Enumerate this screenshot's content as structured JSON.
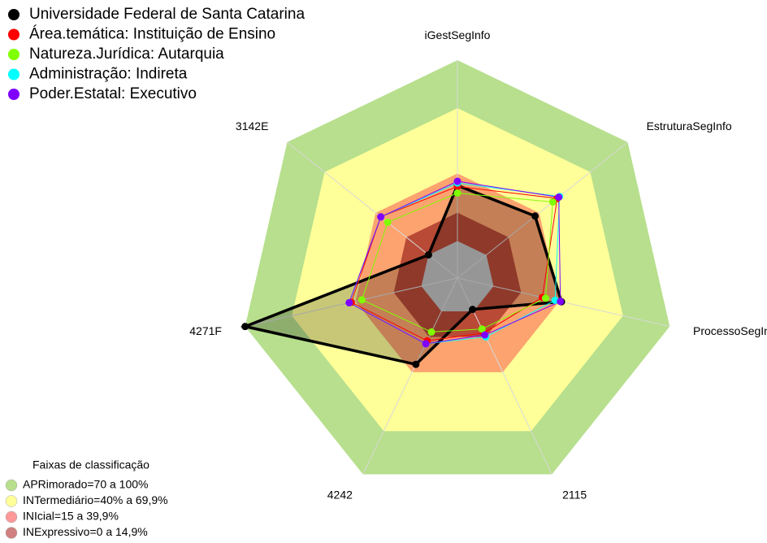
{
  "chart_data": {
    "type": "radar",
    "categories": [
      "iGestSegInfo",
      "EstruturaSegInfo",
      "ProcessoSegInfo",
      "2115",
      "4242",
      "4271F",
      "3142E"
    ],
    "rlim": [
      0,
      100
    ],
    "series": [
      {
        "name": "Universidade Federal de Santa Catarina",
        "color": "#000000",
        "fill": true,
        "values": [
          42.5,
          45.6,
          49,
          16,
          44,
          100,
          17
        ]
      },
      {
        "name": "Área.temática: Instituição de Ensino",
        "color": "#ff0000",
        "fill": false,
        "values": [
          42,
          58.6,
          40,
          28,
          32,
          50,
          45
        ]
      },
      {
        "name": "Natureza.Jurídica: Autarquia",
        "color": "#80ff00",
        "fill": false,
        "values": [
          39,
          56,
          41.5,
          26,
          27.5,
          45,
          41
        ]
      },
      {
        "name": "Administração: Indireta",
        "color": "#00ffff",
        "fill": false,
        "values": [
          43.6,
          60,
          46,
          30,
          33.5,
          51,
          45
        ]
      },
      {
        "name": "Poder.Estatal: Executivo",
        "color": "#8000ff",
        "fill": false,
        "values": [
          44.4,
          59.5,
          48.5,
          29,
          33.5,
          51,
          45
        ]
      }
    ],
    "bands": [
      {
        "from": 78,
        "to": 100,
        "color": "#b7df8d"
      },
      {
        "from": 48,
        "to": 78,
        "color": "#ffff99"
      },
      {
        "from": 30,
        "to": 48,
        "color": "#fca36f"
      },
      {
        "from": 17,
        "to": 30,
        "color": "#b84a36"
      },
      {
        "from": 0,
        "to": 17,
        "color": "#c0c0c0"
      }
    ],
    "legend": "upper left",
    "band_legend": {
      "title": "Faixas de classificação",
      "items": [
        {
          "label": "APRimorado=70 a 100%",
          "color": "#b7df8d"
        },
        {
          "label": "INTermediário=40% a 69,9%",
          "color": "#ffff99"
        },
        {
          "label": "INIcial=15 a 39,9%",
          "color": "#ff9999"
        },
        {
          "label": "INExpressivo=0 a 14,9%",
          "color": "#d08080"
        }
      ]
    }
  }
}
